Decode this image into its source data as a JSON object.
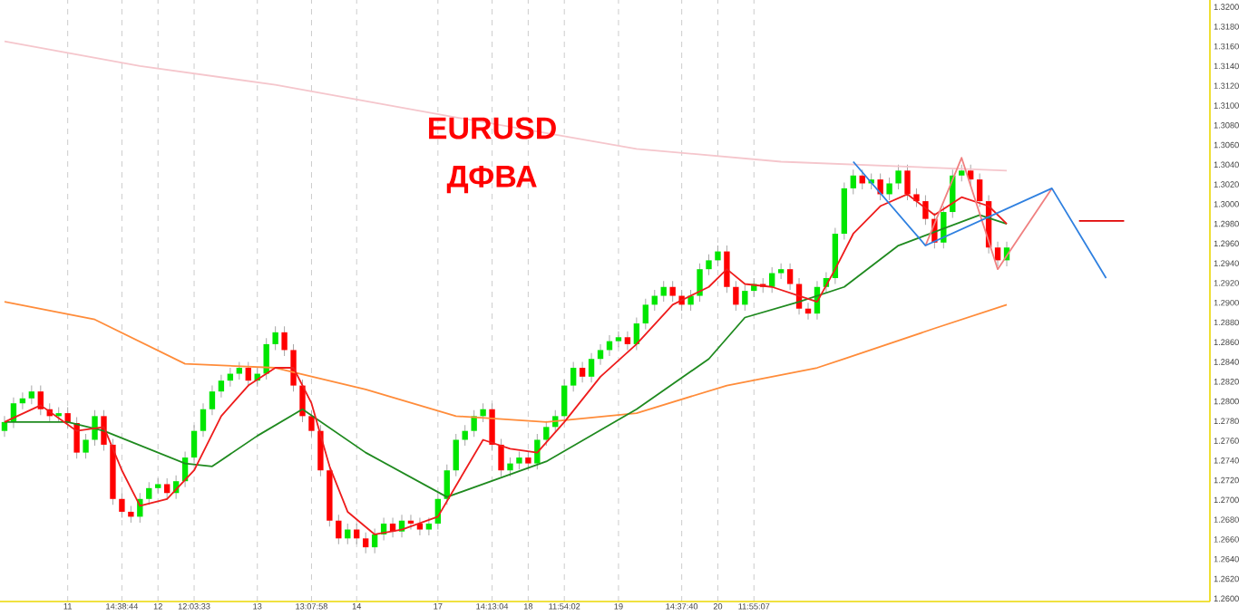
{
  "chart_data": {
    "type": "candlestick",
    "title": "EURUSD",
    "subtitle": "ДФВА",
    "categories": [
      null,
      null,
      null,
      null,
      null,
      null,
      null,
      "11",
      null,
      null,
      null,
      null,
      null,
      "14:38:44",
      null,
      null,
      null,
      "12",
      null,
      null,
      null,
      "12:03:33",
      null,
      null,
      null,
      null,
      null,
      null,
      "13",
      null,
      null,
      null,
      null,
      null,
      "13:07:58",
      null,
      null,
      null,
      null,
      "14",
      null,
      null,
      null,
      null,
      null,
      null,
      null,
      null,
      "17",
      null,
      null,
      null,
      null,
      null,
      "14:13:04",
      null,
      null,
      null,
      "18",
      null,
      null,
      null,
      "11:54:02",
      null,
      null,
      null,
      null,
      null,
      "19",
      null,
      null,
      null,
      null,
      null,
      null,
      "14:37:40",
      null,
      null,
      null,
      "20",
      null,
      null,
      null,
      "11:55:07",
      null,
      null,
      null,
      null,
      null,
      null,
      null,
      null,
      null,
      null,
      null,
      null,
      null,
      null,
      null,
      null,
      null,
      null,
      null,
      null,
      null,
      null,
      null,
      null,
      null,
      null,
      null,
      null,
      null,
      null,
      null,
      null,
      null,
      null,
      null,
      null,
      null,
      null,
      null,
      null,
      null,
      null,
      null,
      null,
      null,
      null,
      null,
      null,
      null,
      null
    ],
    "ohlc": [
      [
        1.277,
        1.2785,
        1.2764,
        1.2779
      ],
      [
        1.2779,
        1.2804,
        1.2773,
        1.2798
      ],
      [
        1.2798,
        1.2809,
        1.2792,
        1.2803
      ],
      [
        1.2803,
        1.2816,
        1.2797,
        1.281
      ],
      [
        1.281,
        1.2816,
        1.2786,
        1.2792
      ],
      [
        1.2792,
        1.2798,
        1.2779,
        1.2785
      ],
      [
        1.2785,
        1.2794,
        1.2779,
        1.2788
      ],
      [
        1.2788,
        1.2794,
        1.2772,
        1.2778
      ],
      [
        1.2778,
        1.2784,
        1.2742,
        1.2748
      ],
      [
        1.2748,
        1.2767,
        1.2742,
        1.2761
      ],
      [
        1.2761,
        1.2791,
        1.2755,
        1.2785
      ],
      [
        1.2785,
        1.2791,
        1.275,
        1.2756
      ],
      [
        1.2756,
        1.2762,
        1.2695,
        1.2701
      ],
      [
        1.2701,
        1.2707,
        1.2682,
        1.2688
      ],
      [
        1.2688,
        1.2694,
        1.2677,
        1.2683
      ],
      [
        1.2683,
        1.2707,
        1.2677,
        1.2701
      ],
      [
        1.2701,
        1.2718,
        1.2695,
        1.2712
      ],
      [
        1.2712,
        1.2722,
        1.2706,
        1.2716
      ],
      [
        1.2716,
        1.2722,
        1.2701,
        1.2707
      ],
      [
        1.2707,
        1.2725,
        1.2701,
        1.2719
      ],
      [
        1.2719,
        1.2749,
        1.2713,
        1.2743
      ],
      [
        1.2743,
        1.2776,
        1.2737,
        1.277
      ],
      [
        1.277,
        1.2798,
        1.2764,
        1.2792
      ],
      [
        1.2792,
        1.2816,
        1.2786,
        1.281
      ],
      [
        1.281,
        1.2827,
        1.2804,
        1.2821
      ],
      [
        1.2821,
        1.2834,
        1.2815,
        1.2828
      ],
      [
        1.2828,
        1.284,
        1.2822,
        1.2834
      ],
      [
        1.2834,
        1.284,
        1.2815,
        1.2821
      ],
      [
        1.2821,
        1.2834,
        1.2815,
        1.2828
      ],
      [
        1.2828,
        1.2864,
        1.2822,
        1.2858
      ],
      [
        1.2858,
        1.2876,
        1.2852,
        1.287
      ],
      [
        1.287,
        1.2876,
        1.2846,
        1.2852
      ],
      [
        1.2852,
        1.2858,
        1.281,
        1.2816
      ],
      [
        1.2816,
        1.2822,
        1.2779,
        1.2785
      ],
      [
        1.2785,
        1.2791,
        1.2764,
        1.277
      ],
      [
        1.277,
        1.2776,
        1.2724,
        1.273
      ],
      [
        1.273,
        1.2736,
        1.2673,
        1.2679
      ],
      [
        1.2679,
        1.2685,
        1.2655,
        1.2661
      ],
      [
        1.2661,
        1.2676,
        1.2655,
        1.267
      ],
      [
        1.267,
        1.2676,
        1.2655,
        1.2661
      ],
      [
        1.2661,
        1.2667,
        1.2646,
        1.2652
      ],
      [
        1.2652,
        1.2671,
        1.2646,
        1.2665
      ],
      [
        1.2665,
        1.2682,
        1.2659,
        1.2676
      ],
      [
        1.2676,
        1.2682,
        1.2662,
        1.2668
      ],
      [
        1.2668,
        1.2685,
        1.2662,
        1.2679
      ],
      [
        1.2679,
        1.2685,
        1.267,
        1.2676
      ],
      [
        1.2676,
        1.2682,
        1.2664,
        1.267
      ],
      [
        1.267,
        1.2682,
        1.2664,
        1.2676
      ],
      [
        1.2676,
        1.2707,
        1.267,
        1.2701
      ],
      [
        1.2701,
        1.2736,
        1.2695,
        1.273
      ],
      [
        1.273,
        1.2767,
        1.2724,
        1.2761
      ],
      [
        1.2761,
        1.2776,
        1.2755,
        1.277
      ],
      [
        1.277,
        1.2791,
        1.2764,
        1.2785
      ],
      [
        1.2785,
        1.2798,
        1.2779,
        1.2792
      ],
      [
        1.2792,
        1.2798,
        1.275,
        1.2756
      ],
      [
        1.2756,
        1.2762,
        1.2724,
        1.273
      ],
      [
        1.273,
        1.2743,
        1.2724,
        1.2737
      ],
      [
        1.2737,
        1.2749,
        1.2731,
        1.2743
      ],
      [
        1.2743,
        1.2749,
        1.2731,
        1.2737
      ],
      [
        1.2737,
        1.2767,
        1.2731,
        1.2761
      ],
      [
        1.2761,
        1.278,
        1.2755,
        1.2774
      ],
      [
        1.2774,
        1.2791,
        1.2768,
        1.2785
      ],
      [
        1.2785,
        1.2822,
        1.2779,
        1.2816
      ],
      [
        1.2816,
        1.284,
        1.281,
        1.2834
      ],
      [
        1.2834,
        1.284,
        1.2819,
        1.2825
      ],
      [
        1.2825,
        1.2849,
        1.2819,
        1.2843
      ],
      [
        1.2843,
        1.2858,
        1.2837,
        1.2852
      ],
      [
        1.2852,
        1.2867,
        1.2846,
        1.2861
      ],
      [
        1.2861,
        1.2871,
        1.2855,
        1.2865
      ],
      [
        1.2865,
        1.2871,
        1.2852,
        1.2858
      ],
      [
        1.2858,
        1.2885,
        1.2852,
        1.2879
      ],
      [
        1.2879,
        1.2904,
        1.2873,
        1.2898
      ],
      [
        1.2898,
        1.2913,
        1.2892,
        1.2907
      ],
      [
        1.2907,
        1.2922,
        1.2901,
        1.2916
      ],
      [
        1.2916,
        1.2922,
        1.2901,
        1.2907
      ],
      [
        1.2907,
        1.2913,
        1.2892,
        1.2898
      ],
      [
        1.2898,
        1.2913,
        1.2892,
        1.2907
      ],
      [
        1.2907,
        1.294,
        1.2901,
        1.2934
      ],
      [
        1.2934,
        1.2949,
        1.2928,
        1.2943
      ],
      [
        1.2943,
        1.2958,
        1.2937,
        1.2952
      ],
      [
        1.2952,
        1.2958,
        1.291,
        1.2916
      ],
      [
        1.2916,
        1.2922,
        1.2892,
        1.2898
      ],
      [
        1.2898,
        1.2918,
        1.2892,
        1.2912
      ],
      [
        1.2912,
        1.2925,
        1.2906,
        1.2919
      ],
      [
        1.2919,
        1.2925,
        1.291,
        1.2916
      ],
      [
        1.2916,
        1.2936,
        1.291,
        1.293
      ],
      [
        1.293,
        1.294,
        1.2924,
        1.2934
      ],
      [
        1.2934,
        1.294,
        1.2913,
        1.2919
      ],
      [
        1.2919,
        1.2925,
        1.2888,
        1.2894
      ],
      [
        1.2894,
        1.29,
        1.2883,
        1.2889
      ],
      [
        1.2889,
        1.2922,
        1.2883,
        1.2916
      ],
      [
        1.2916,
        1.2931,
        1.291,
        1.2925
      ],
      [
        1.2925,
        1.2976,
        1.2919,
        1.297
      ],
      [
        1.297,
        1.3022,
        1.2964,
        1.3016
      ],
      [
        1.3016,
        1.3035,
        1.301,
        1.3029
      ],
      [
        1.3029,
        1.3035,
        1.3015,
        1.3021
      ],
      [
        1.3021,
        1.3031,
        1.3015,
        1.3025
      ],
      [
        1.3025,
        1.3031,
        1.3004,
        1.301
      ],
      [
        1.301,
        1.3027,
        1.3004,
        1.3021
      ],
      [
        1.3021,
        1.304,
        1.3015,
        1.3034
      ],
      [
        1.3034,
        1.304,
        1.3004,
        1.301
      ],
      [
        1.301,
        1.3016,
        1.2997,
        1.3003
      ],
      [
        1.3003,
        1.3009,
        1.2979,
        1.2985
      ],
      [
        1.2985,
        1.2991,
        1.2955,
        1.2961
      ],
      [
        1.2961,
        1.2998,
        1.2955,
        1.2992
      ],
      [
        1.2992,
        1.3035,
        1.2986,
        1.3029
      ],
      [
        1.3029,
        1.304,
        1.3023,
        1.3034
      ],
      [
        1.3034,
        1.304,
        1.3019,
        1.3025
      ],
      [
        1.3025,
        1.3031,
        1.2997,
        1.3003
      ],
      [
        1.3003,
        1.3009,
        1.295,
        1.2956
      ],
      [
        1.2956,
        1.2962,
        1.2937,
        1.2943
      ],
      [
        1.2943,
        1.2962,
        1.2937,
        1.2956
      ],
      null,
      null,
      null,
      null,
      null,
      null,
      null,
      null,
      null,
      null,
      null,
      null,
      null,
      null,
      null,
      null,
      null,
      null,
      null,
      null,
      null,
      null
    ],
    "colors": [
      "#00e600",
      "#00e600",
      "#00e600",
      "#00e600",
      "#ff0000",
      "#ff0000",
      "#00e600",
      "#ff0000",
      "#ff0000",
      "#00e600",
      "#00e600",
      "#ff0000",
      "#ff0000",
      "#ff0000",
      "#ff0000",
      "#00e600",
      "#00e600",
      "#00e600",
      "#ff0000",
      "#00e600",
      "#00e600",
      "#00e600",
      "#00e600",
      "#00e600",
      "#00e600",
      "#00e600",
      "#00e600",
      "#ff0000",
      "#00e600",
      "#00e600",
      "#00e600",
      "#ff0000",
      "#ff0000",
      "#ff0000",
      "#ff0000",
      "#ff0000",
      "#ff0000",
      "#ff0000",
      "#00e600",
      "#ff0000",
      "#ff0000",
      "#00e600",
      "#00e600",
      "#ff0000",
      "#00e600",
      "#ff0000",
      "#ff0000",
      "#00e600",
      "#00e600",
      "#00e600",
      "#00e600",
      "#00e600",
      "#00e600",
      "#00e600",
      "#ff0000",
      "#ff0000",
      "#00e600",
      "#00e600",
      "#ff0000",
      "#00e600",
      "#00e600",
      "#00e600",
      "#00e600",
      "#00e600",
      "#ff0000",
      "#00e600",
      "#00e600",
      "#00e600",
      "#00e600",
      "#ff0000",
      "#00e600",
      "#00e600",
      "#00e600",
      "#00e600",
      "#ff0000",
      "#ff0000",
      "#00e600",
      "#00e600",
      "#00e600",
      "#00e600",
      "#ff0000",
      "#ff0000",
      "#00e600",
      "#00e600",
      "#ff0000",
      "#00e600",
      "#00e600",
      "#ff0000",
      "#ff0000",
      "#ff0000",
      "#00e600",
      "#00e600",
      "#00e600",
      "#00e600",
      "#00e600",
      "#ff0000",
      "#00e600",
      "#ff0000",
      "#00e600",
      "#00e600",
      "#ff0000",
      "#ff0000",
      "#ff0000",
      "#ff0000",
      "#00e600",
      "#00e600",
      "#00e600",
      "#ff0000",
      "#ff0000",
      "#ff0000",
      "#ff0000",
      "#00e600",
      null,
      null,
      null,
      null,
      null,
      null,
      null,
      null,
      null,
      null,
      null,
      null,
      null,
      null,
      null,
      null,
      null,
      null,
      null,
      null,
      null,
      null
    ],
    "series": [
      {
        "type": "line",
        "color": "#f5c6cc",
        "values": [
          1.3165,
          null,
          null,
          null,
          null,
          null,
          null,
          null,
          null,
          null,
          null,
          null,
          null,
          null,
          null,
          1.314,
          null,
          null,
          null,
          null,
          null,
          null,
          null,
          null,
          null,
          null,
          null,
          null,
          null,
          null,
          1.3121,
          null,
          null,
          null,
          null,
          null,
          null,
          null,
          null,
          null,
          null,
          null,
          null,
          null,
          null,
          null,
          null,
          null,
          null,
          null,
          1.3088,
          null,
          null,
          null,
          null,
          null,
          null,
          null,
          null,
          null,
          null,
          null,
          null,
          null,
          null,
          null,
          null,
          null,
          null,
          null,
          1.3056,
          null,
          null,
          null,
          null,
          null,
          null,
          null,
          null,
          null,
          null,
          null,
          null,
          null,
          null,
          null,
          1.3043,
          null,
          null,
          null,
          null,
          null,
          null,
          null,
          null,
          null,
          null,
          null,
          null,
          null,
          null,
          null,
          null,
          null,
          null,
          null,
          null,
          null,
          null,
          null,
          null,
          1.3034,
          null,
          null,
          null,
          null,
          null,
          null,
          null,
          null,
          null,
          null,
          null,
          null,
          null,
          null,
          null,
          null,
          null,
          null,
          null,
          null,
          null,
          null
        ]
      },
      {
        "type": "line",
        "color": "#ff8c3a",
        "values": [
          1.2901,
          null,
          null,
          null,
          null,
          null,
          null,
          null,
          null,
          null,
          1.2883,
          null,
          null,
          null,
          null,
          null,
          null,
          null,
          null,
          null,
          1.2838,
          null,
          null,
          null,
          null,
          null,
          null,
          null,
          null,
          null,
          1.2834,
          null,
          null,
          null,
          null,
          null,
          null,
          null,
          null,
          null,
          1.2812,
          null,
          null,
          null,
          null,
          null,
          null,
          null,
          null,
          null,
          1.2785,
          null,
          null,
          null,
          null,
          null,
          null,
          null,
          null,
          null,
          1.2779,
          null,
          null,
          null,
          null,
          null,
          null,
          null,
          null,
          null,
          1.2788,
          null,
          null,
          null,
          null,
          null,
          null,
          null,
          null,
          null,
          1.2816,
          null,
          null,
          null,
          null,
          null,
          null,
          null,
          null,
          null,
          1.2834,
          null,
          null,
          1.2843,
          null,
          null,
          null,
          null,
          null,
          null,
          null,
          null,
          null,
          1.2874,
          null,
          null,
          null,
          null,
          null,
          null,
          null,
          1.2898,
          null,
          null,
          null,
          null,
          null,
          null,
          null,
          null,
          null,
          null,
          null,
          null,
          null,
          null,
          null,
          null,
          null,
          null,
          null,
          null,
          null,
          null
        ]
      },
      {
        "type": "line",
        "color": "#1f8a1f",
        "values": [
          1.2779,
          null,
          null,
          null,
          null,
          null,
          null,
          1.2779,
          null,
          null,
          null,
          1.277,
          null,
          null,
          null,
          null,
          null,
          null,
          null,
          null,
          1.2737,
          null,
          null,
          1.2734,
          null,
          null,
          null,
          null,
          1.2765,
          null,
          null,
          null,
          null,
          1.2792,
          null,
          null,
          null,
          null,
          null,
          null,
          1.2748,
          null,
          null,
          null,
          null,
          null,
          null,
          null,
          null,
          1.2703,
          null,
          null,
          null,
          null,
          null,
          null,
          null,
          null,
          null,
          null,
          1.2739,
          null,
          null,
          null,
          null,
          null,
          null,
          null,
          null,
          null,
          1.2792,
          null,
          null,
          null,
          null,
          null,
          null,
          null,
          1.2843,
          null,
          null,
          null,
          1.2885,
          null,
          null,
          null,
          null,
          null,
          1.2901,
          null,
          null,
          null,
          null,
          1.2916,
          null,
          null,
          null,
          null,
          null,
          1.2958,
          null,
          null,
          null,
          null,
          null,
          null,
          null,
          null,
          1.2989,
          null,
          null,
          1.298,
          null,
          null,
          null,
          null,
          null,
          null,
          null,
          null,
          null,
          null,
          null,
          null,
          null,
          null,
          null,
          null,
          null,
          null,
          null,
          null,
          null,
          null
        ]
      },
      {
        "type": "line",
        "color": "#ee1c1c",
        "values": [
          1.2779,
          null,
          null,
          null,
          1.2796,
          null,
          null,
          null,
          1.277,
          null,
          null,
          1.2774,
          null,
          1.273,
          null,
          1.2694,
          null,
          null,
          1.2701,
          null,
          null,
          1.273,
          null,
          null,
          1.2785,
          null,
          null,
          1.2816,
          null,
          null,
          1.2834,
          null,
          1.2834,
          null,
          1.2798,
          null,
          1.2734,
          null,
          1.2688,
          null,
          null,
          1.2665,
          null,
          null,
          1.267,
          null,
          null,
          null,
          1.2683,
          null,
          null,
          1.273,
          null,
          1.2761,
          null,
          null,
          1.2752,
          null,
          null,
          1.2748,
          null,
          null,
          1.2779,
          null,
          null,
          null,
          1.2825,
          null,
          null,
          null,
          1.2858,
          null,
          null,
          null,
          1.2898,
          null,
          null,
          null,
          1.2916,
          null,
          1.2934,
          null,
          1.2919,
          null,
          null,
          1.2916,
          null,
          null,
          1.2907,
          null,
          1.2901,
          null,
          1.2934,
          null,
          1.297,
          null,
          null,
          1.2998,
          null,
          null,
          1.301,
          null,
          null,
          1.2989,
          null,
          null,
          1.3007,
          null,
          null,
          1.2998,
          null,
          1.298,
          null,
          null,
          null,
          null,
          null,
          null,
          null,
          null,
          null,
          null,
          null,
          null,
          null,
          null,
          null,
          null,
          null,
          null,
          null,
          null,
          null,
          null
        ]
      },
      {
        "type": "line",
        "color": "#f08080",
        "values": [
          null,
          null,
          null,
          null,
          null,
          null,
          null,
          null,
          null,
          null,
          null,
          null,
          null,
          null,
          null,
          null,
          null,
          null,
          null,
          null,
          null,
          null,
          null,
          null,
          null,
          null,
          null,
          null,
          null,
          null,
          null,
          null,
          null,
          null,
          null,
          null,
          null,
          null,
          null,
          null,
          null,
          null,
          null,
          null,
          null,
          null,
          null,
          null,
          null,
          null,
          null,
          null,
          null,
          null,
          null,
          null,
          null,
          null,
          null,
          null,
          null,
          null,
          null,
          null,
          null,
          null,
          null,
          null,
          null,
          null,
          null,
          null,
          null,
          null,
          null,
          null,
          null,
          null,
          null,
          null,
          null,
          null,
          null,
          null,
          null,
          null,
          null,
          null,
          null,
          null,
          null,
          null,
          null,
          null,
          null,
          null,
          null,
          null,
          null,
          null,
          null,
          null,
          1.2958,
          null,
          null,
          null,
          1.3047,
          null,
          null,
          null,
          1.2934,
          null,
          null,
          null,
          null,
          null,
          1.3016,
          null,
          null,
          null,
          null,
          null,
          null,
          null,
          null,
          null,
          null,
          null,
          null,
          null,
          null,
          null,
          null,
          null
        ]
      },
      {
        "type": "line",
        "color": "#2f80e0",
        "values": [
          null,
          null,
          null,
          null,
          null,
          null,
          null,
          null,
          null,
          null,
          null,
          null,
          null,
          null,
          null,
          null,
          null,
          null,
          null,
          null,
          null,
          null,
          null,
          null,
          null,
          null,
          null,
          null,
          null,
          null,
          null,
          null,
          null,
          null,
          null,
          null,
          null,
          null,
          null,
          null,
          null,
          null,
          null,
          null,
          null,
          null,
          null,
          null,
          null,
          null,
          null,
          null,
          null,
          null,
          null,
          null,
          null,
          null,
          null,
          null,
          null,
          null,
          null,
          null,
          null,
          null,
          null,
          null,
          null,
          null,
          null,
          null,
          null,
          null,
          null,
          null,
          null,
          null,
          null,
          null,
          null,
          null,
          null,
          null,
          null,
          null,
          null,
          null,
          null,
          null,
          null,
          null,
          null,
          null,
          1.3043,
          null,
          null,
          null,
          null,
          null,
          null,
          null,
          1.2958,
          null,
          null,
          null,
          null,
          null,
          null,
          null,
          null,
          null,
          null,
          null,
          null,
          null,
          1.3016,
          null,
          null,
          null,
          null,
          null,
          1.2925,
          null,
          null,
          null,
          null,
          null,
          null,
          null,
          null,
          null,
          null,
          null
        ]
      },
      {
        "type": "line",
        "color": "#e00000",
        "values": [
          null,
          null,
          null,
          null,
          null,
          null,
          null,
          null,
          null,
          null,
          null,
          null,
          null,
          null,
          null,
          null,
          null,
          null,
          null,
          null,
          null,
          null,
          null,
          null,
          null,
          null,
          null,
          null,
          null,
          null,
          null,
          null,
          null,
          null,
          null,
          null,
          null,
          null,
          null,
          null,
          null,
          null,
          null,
          null,
          null,
          null,
          null,
          null,
          null,
          null,
          null,
          null,
          null,
          null,
          null,
          null,
          null,
          null,
          null,
          null,
          null,
          null,
          null,
          null,
          null,
          null,
          null,
          null,
          null,
          null,
          null,
          null,
          null,
          null,
          null,
          null,
          null,
          null,
          null,
          null,
          null,
          null,
          null,
          null,
          null,
          null,
          null,
          null,
          null,
          null,
          null,
          null,
          null,
          null,
          null,
          null,
          null,
          null,
          null,
          null,
          null,
          null,
          null,
          null,
          null,
          null,
          null,
          null,
          null,
          null,
          null,
          null,
          null,
          null,
          null,
          null,
          null,
          null,
          null,
          1.2983,
          null,
          null,
          null,
          null,
          1.2983,
          null,
          null,
          null,
          null,
          null,
          null,
          null,
          null,
          null
        ]
      }
    ],
    "ylim": [
      1.2597,
      1.3207
    ],
    "yticks": [
      {
        "value": 1.26,
        "label": "1.2600"
      },
      {
        "value": 1.262,
        "label": "1.2620"
      },
      {
        "value": 1.264,
        "label": "1.2640"
      },
      {
        "value": 1.266,
        "label": "1.2660"
      },
      {
        "value": 1.268,
        "label": "1.2680"
      },
      {
        "value": 1.27,
        "label": "1.2700"
      },
      {
        "value": 1.272,
        "label": "1.2720"
      },
      {
        "value": 1.274,
        "label": "1.2740"
      },
      {
        "value": 1.276,
        "label": "1.2760"
      },
      {
        "value": 1.278,
        "label": "1.2780"
      },
      {
        "value": 1.28,
        "label": "1.2800"
      },
      {
        "value": 1.282,
        "label": "1.2820"
      },
      {
        "value": 1.284,
        "label": "1.2840"
      },
      {
        "value": 1.286,
        "label": "1.2860"
      },
      {
        "value": 1.288,
        "label": "1.2880"
      },
      {
        "value": 1.29,
        "label": "1.2900"
      },
      {
        "value": 1.292,
        "label": "1.2920"
      },
      {
        "value": 1.294,
        "label": "1.2940"
      },
      {
        "value": 1.296,
        "label": "1.2960"
      },
      {
        "value": 1.298,
        "label": "1.2980"
      },
      {
        "value": 1.3,
        "label": "1.3000"
      },
      {
        "value": 1.302,
        "label": "1.3020"
      },
      {
        "value": 1.304,
        "label": "1.3040"
      },
      {
        "value": 1.306,
        "label": "1.3060"
      },
      {
        "value": 1.308,
        "label": "1.3080"
      },
      {
        "value": 1.31,
        "label": "1.3100"
      },
      {
        "value": 1.312,
        "label": "1.3120"
      },
      {
        "value": 1.314,
        "label": "1.3140"
      },
      {
        "value": 1.316,
        "label": "1.3160"
      },
      {
        "value": 1.318,
        "label": "1.3180"
      },
      {
        "value": 1.32,
        "label": "1.3200"
      }
    ],
    "grid": "x"
  }
}
